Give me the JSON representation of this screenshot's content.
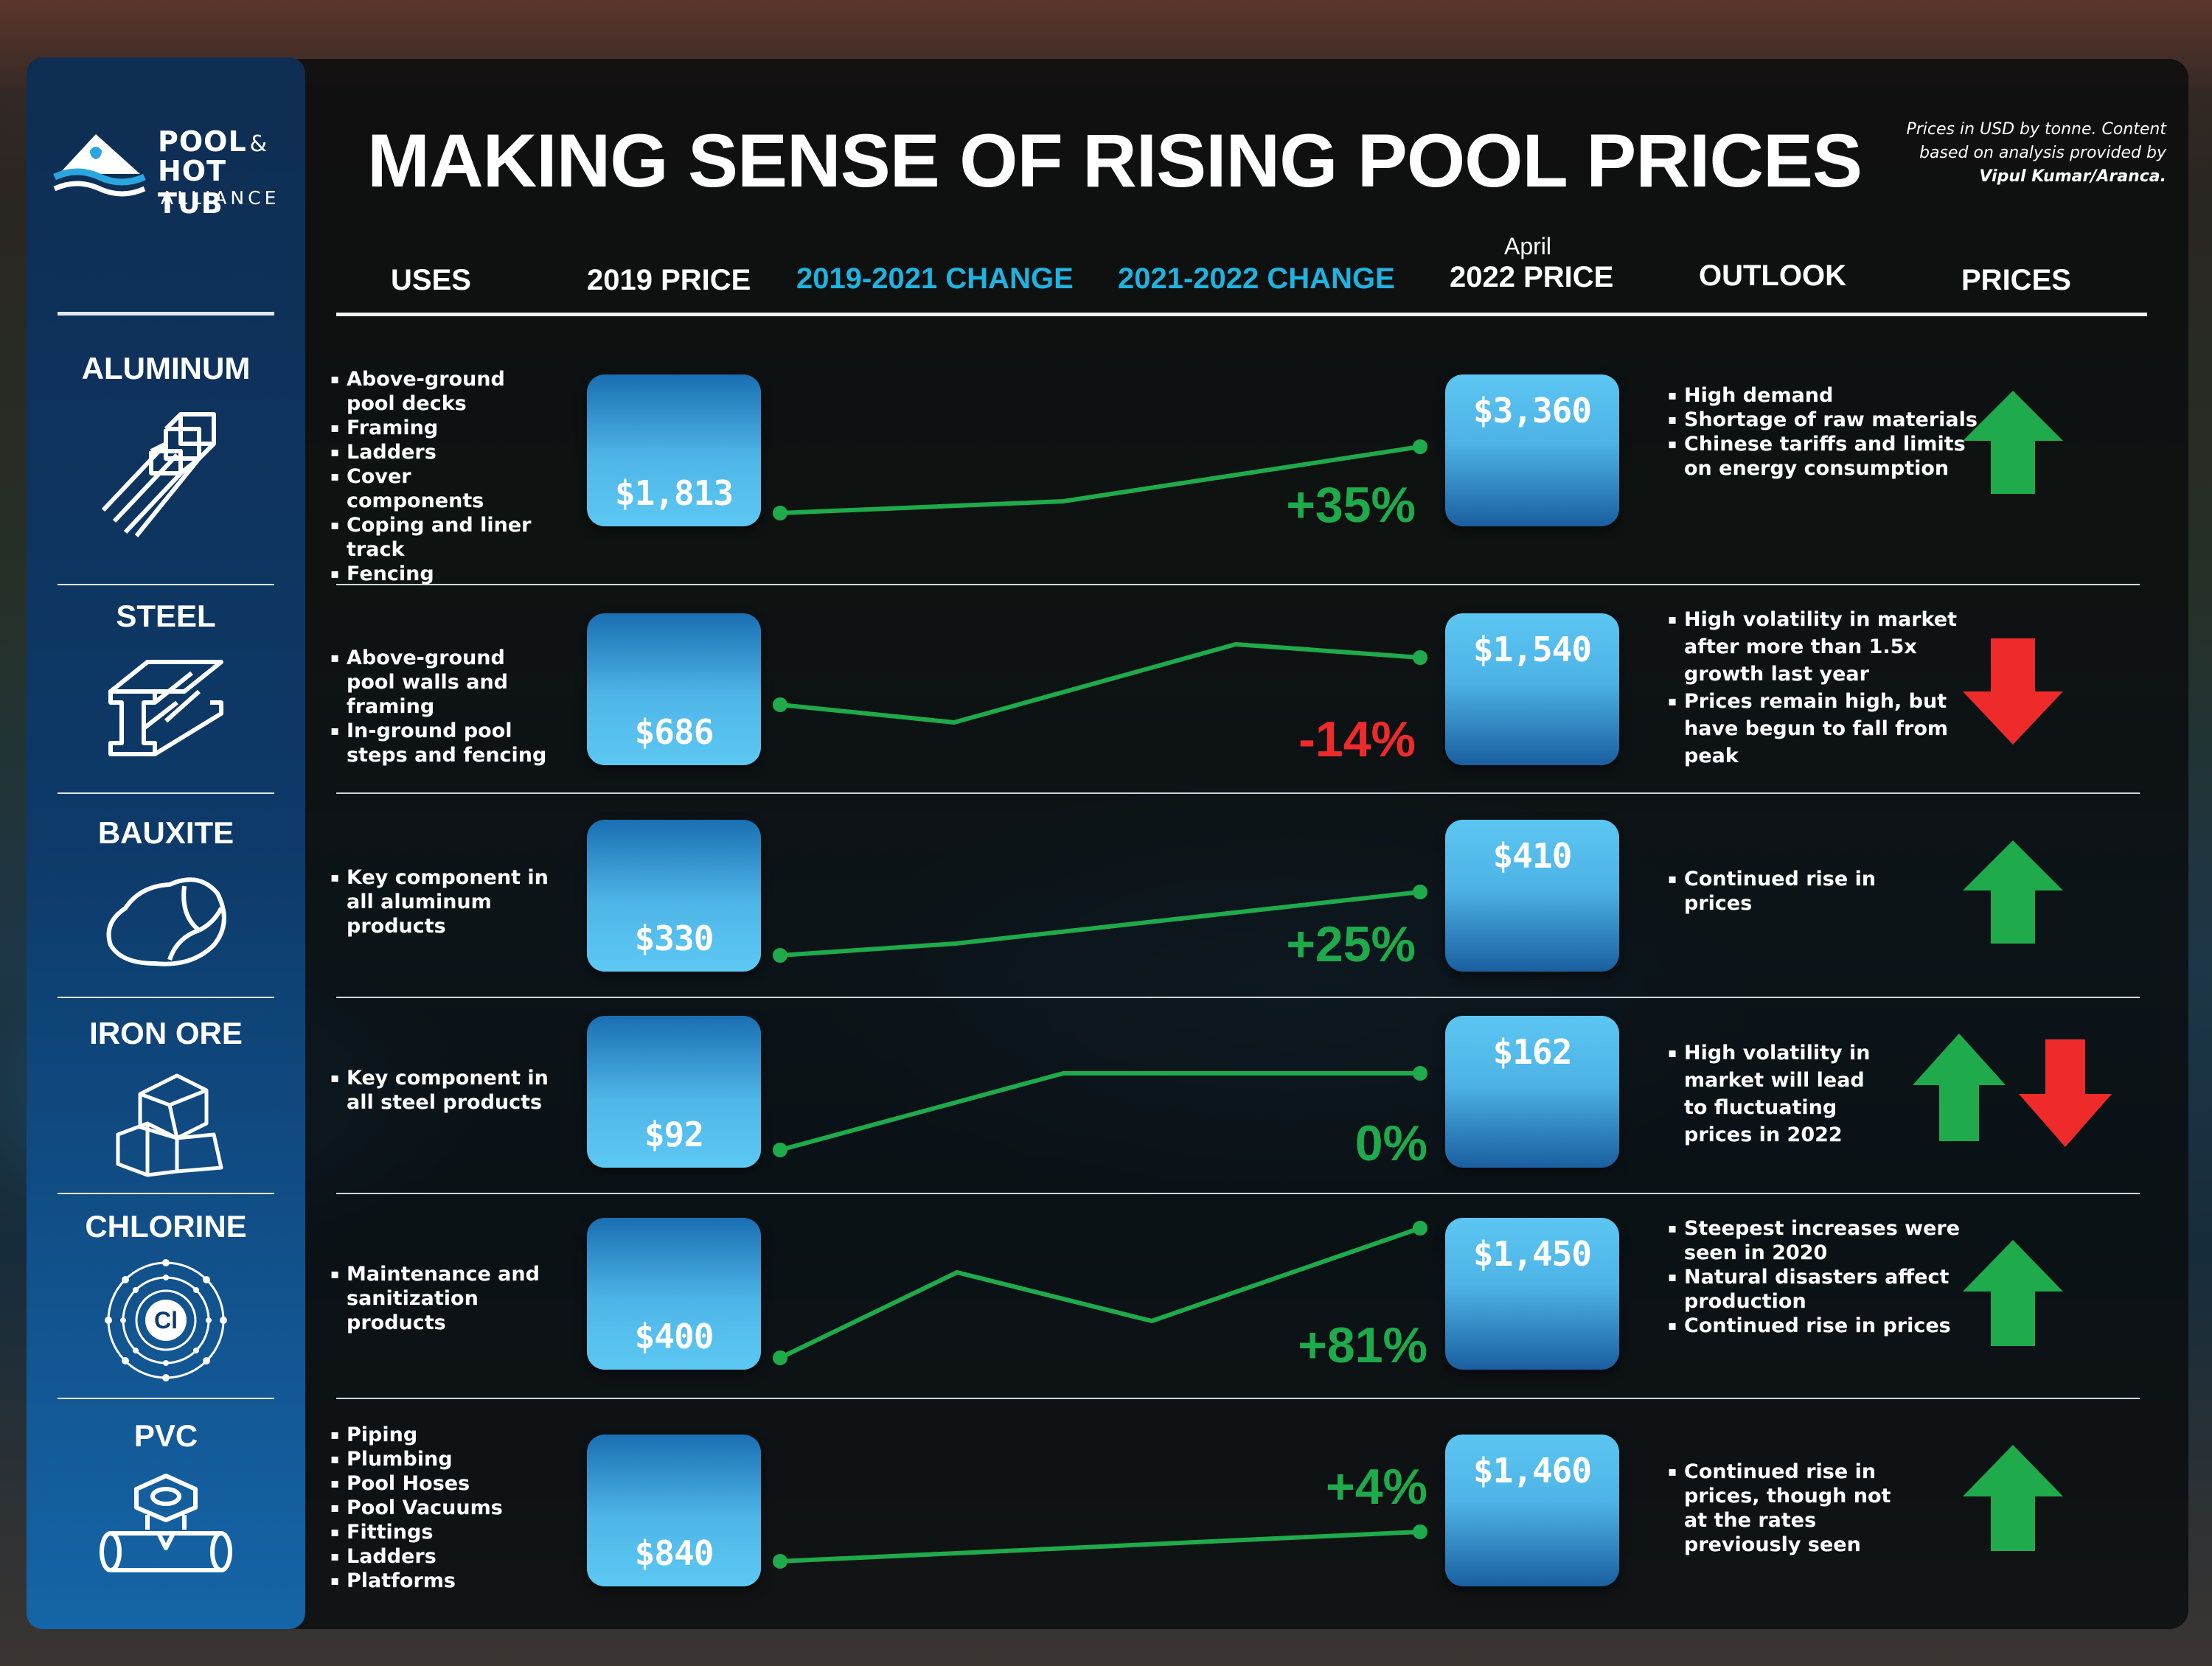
{
  "brand": {
    "line1": "POOL",
    "amp": "&",
    "line2": "HOT TUB",
    "line3": "ALLIANCE"
  },
  "title": "MAKING SENSE OF RISING POOL PRICES",
  "note": {
    "line1": "Prices in USD by tonne. Content",
    "line2": "based on analysis provided by",
    "line3": "Vipul Kumar/Aranca."
  },
  "headers": {
    "uses": "USES",
    "price_2019": "2019 PRICE",
    "change_2019_2021": "2019-2021 CHANGE",
    "change_2021_2022": "2021-2022 CHANGE",
    "april": "April",
    "price_2022": "2022 PRICE",
    "outlook": "OUTLOOK",
    "prices": "PRICES"
  },
  "colors": {
    "accent_cyan": "#1eb3e0",
    "up_green": "#1faa4b",
    "down_red": "#ee2a2a",
    "trend_line": "#1faa4b"
  },
  "rows": [
    {
      "name": "ALUMINUM",
      "icon": "aluminum-bars-icon",
      "uses": [
        "Above-ground pool decks",
        "Framing",
        "Ladders",
        "Cover components",
        "Coping and liner track",
        "Fencing"
      ],
      "price_2019": "$1,813",
      "price_2022": "$3,360",
      "change": "+35%",
      "change_sign": "positive",
      "outlook": [
        "High demand",
        "Shortage of raw materials",
        "Chinese tariffs and limits on energy consumption"
      ],
      "trend": [
        "up"
      ]
    },
    {
      "name": "STEEL",
      "icon": "steel-beam-icon",
      "uses": [
        "Above-ground pool walls and framing",
        "In-ground pool steps and fencing"
      ],
      "price_2019": "$686",
      "price_2022": "$1,540",
      "change": "-14%",
      "change_sign": "negative",
      "outlook": [
        "High volatility in market after more than 1.5x growth last year",
        "Prices remain high, but have begun to fall from peak"
      ],
      "trend": [
        "down"
      ]
    },
    {
      "name": "BAUXITE",
      "icon": "bauxite-rock-icon",
      "uses": [
        "Key component in all aluminum products"
      ],
      "price_2019": "$330",
      "price_2022": "$410",
      "change": "+25%",
      "change_sign": "positive",
      "outlook": [
        "Continued rise in prices"
      ],
      "trend": [
        "up"
      ]
    },
    {
      "name": "IRON ORE",
      "icon": "iron-ore-icon",
      "uses": [
        "Key component in all steel products"
      ],
      "price_2019": "$92",
      "price_2022": "$162",
      "change": "0%",
      "change_sign": "positive",
      "outlook": [
        "High volatility in market will lead to fluctuating prices in 2022"
      ],
      "trend": [
        "up",
        "down"
      ]
    },
    {
      "name": "CHLORINE",
      "icon": "chlorine-atom-icon",
      "icon_label": "Cl",
      "uses": [
        "Maintenance and sanitization products"
      ],
      "price_2019": "$400",
      "price_2022": "$1,450",
      "change": "+81%",
      "change_sign": "positive",
      "outlook": [
        "Steepest increases were seen in 2020",
        "Natural disasters affect production",
        "Continued rise in prices"
      ],
      "trend": [
        "up"
      ]
    },
    {
      "name": "PVC",
      "icon": "pvc-pipe-icon",
      "uses": [
        "Piping",
        "Plumbing",
        "Pool Hoses",
        "Pool Vacuums",
        "Fittings",
        "Ladders",
        "Platforms"
      ],
      "price_2019": "$840",
      "price_2022": "$1,460",
      "change": "+4%",
      "change_sign": "positive",
      "outlook": [
        "Continued rise in prices, though not at the rates previously seen"
      ],
      "trend": [
        "up"
      ]
    }
  ]
}
